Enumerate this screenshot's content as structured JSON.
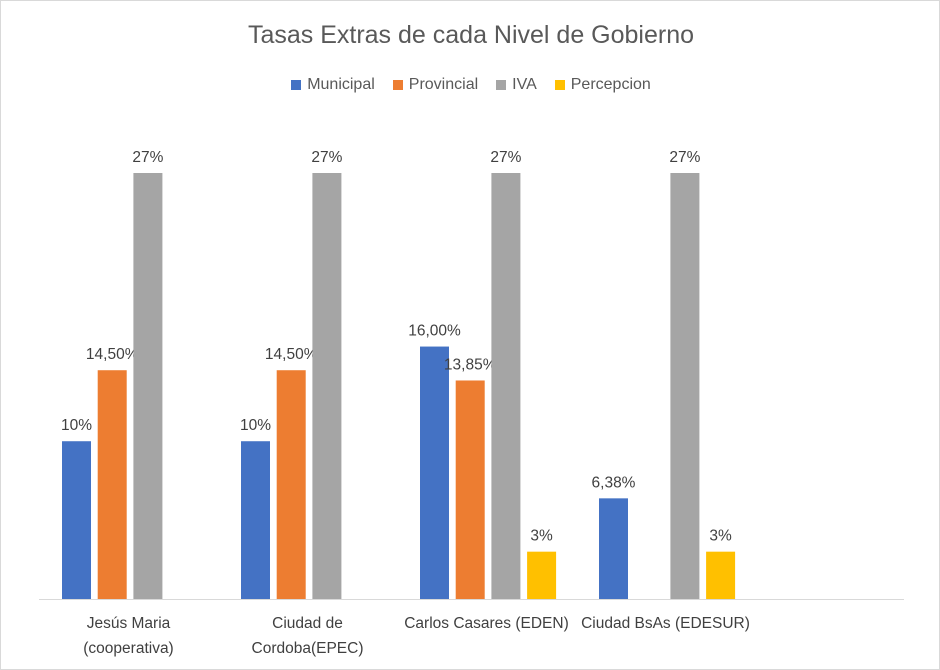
{
  "chart_data": {
    "type": "bar",
    "title": "Tasas Extras de cada Nivel de Gobierno",
    "categories": [
      "Jesús Maria\n(cooperativa)",
      "Ciudad de\nCordoba(EPEC)",
      "Carlos Casares (EDEN)",
      "Ciudad BsAs (EDESUR)"
    ],
    "series": [
      {
        "name": "Municipal",
        "color": "#4472C4",
        "values": [
          10,
          10,
          16,
          6.38
        ],
        "labels": [
          "10%",
          "10%",
          "16,00%",
          "6,38%"
        ]
      },
      {
        "name": "Provincial",
        "color": "#ED7D31",
        "values": [
          14.5,
          14.5,
          13.85,
          null
        ],
        "labels": [
          "14,50%",
          "14,50%",
          "13,85%",
          null
        ]
      },
      {
        "name": "IVA",
        "color": "#A5A5A5",
        "values": [
          27,
          27,
          27,
          27
        ],
        "labels": [
          "27%",
          "27%",
          "27%",
          "27%"
        ]
      },
      {
        "name": "Percepcion",
        "color": "#FFC000",
        "values": [
          null,
          null,
          3,
          3
        ],
        "labels": [
          null,
          null,
          "3%",
          "3%"
        ]
      }
    ],
    "ylim": [
      0,
      27
    ],
    "grid": false,
    "legend_position": "top"
  }
}
